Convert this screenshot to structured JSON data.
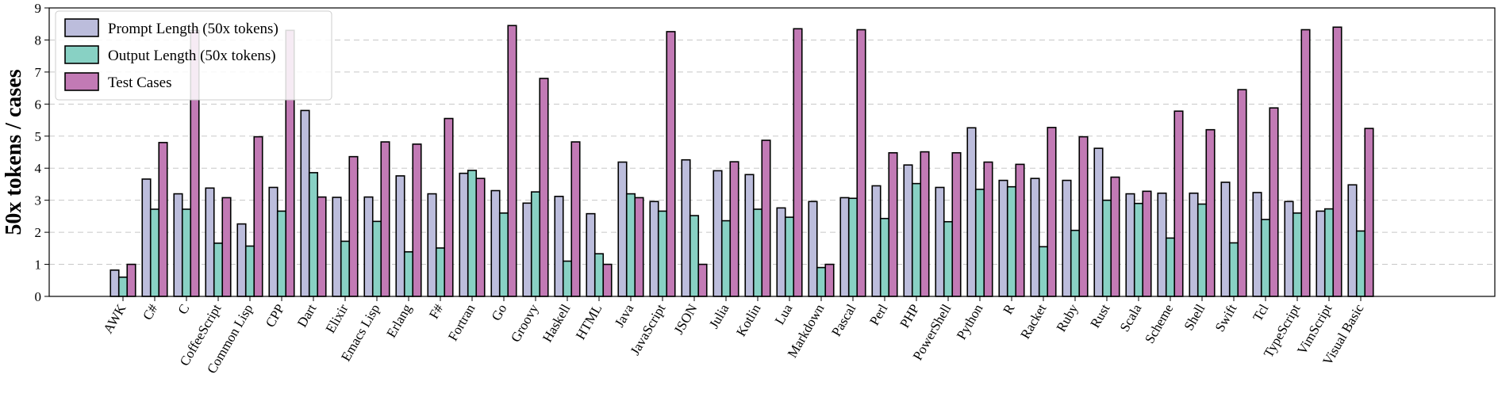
{
  "chart_data": {
    "type": "bar",
    "ylabel": "50x tokens / cases",
    "ylim": [
      0,
      9
    ],
    "yticks": [
      0,
      1,
      2,
      3,
      4,
      5,
      6,
      7,
      8,
      9
    ],
    "grid": "y-dashed",
    "legend_position": "top-left",
    "categories": [
      "AWK",
      "C#",
      "C",
      "CoffeeScript",
      "Common Lisp",
      "CPP",
      "Dart",
      "Elixir",
      "Emacs Lisp",
      "Erlang",
      "F#",
      "Fortran",
      "Go",
      "Groovy",
      "Haskell",
      "HTML",
      "Java",
      "JavaScript",
      "JSON",
      "Julia",
      "Kotlin",
      "Lua",
      "Markdown",
      "Pascal",
      "Perl",
      "PHP",
      "PowerShell",
      "Python",
      "R",
      "Racket",
      "Ruby",
      "Rust",
      "Scala",
      "Scheme",
      "Shell",
      "Swift",
      "Tcl",
      "TypeScript",
      "VimScript",
      "Visual Basic"
    ],
    "series": [
      {
        "name": "Prompt Length (50x tokens)",
        "color": "#bcbddc",
        "values": [
          0.82,
          3.66,
          3.2,
          3.38,
          2.26,
          3.4,
          5.8,
          3.09,
          3.1,
          3.76,
          3.2,
          3.84,
          3.3,
          2.91,
          3.12,
          2.58,
          4.19,
          2.96,
          4.26,
          3.92,
          3.8,
          2.76,
          2.96,
          3.08,
          3.45,
          4.1,
          3.4,
          5.26,
          3.62,
          3.68,
          3.62,
          4.62,
          3.2,
          3.22,
          3.22,
          3.56,
          3.24,
          2.96,
          2.66,
          3.48
        ]
      },
      {
        "name": "Output Length (50x tokens)",
        "color": "#88d1c4",
        "values": [
          0.6,
          2.72,
          2.72,
          1.66,
          1.57,
          2.66,
          3.86,
          1.72,
          2.34,
          1.39,
          1.51,
          3.93,
          2.6,
          3.26,
          1.1,
          1.33,
          3.2,
          2.66,
          2.52,
          2.36,
          2.72,
          2.47,
          0.9,
          3.06,
          2.43,
          3.52,
          2.33,
          3.34,
          3.42,
          1.55,
          2.06,
          3.0,
          2.9,
          1.82,
          2.88,
          1.67,
          2.4,
          2.6,
          2.73,
          2.04
        ]
      },
      {
        "name": "Test Cases",
        "color": "#c27ab5",
        "values": [
          1.0,
          4.8,
          8.3,
          3.08,
          4.98,
          8.3,
          3.1,
          4.36,
          4.82,
          4.75,
          5.55,
          3.68,
          8.45,
          6.8,
          4.82,
          1.0,
          3.08,
          8.26,
          1.0,
          4.2,
          4.87,
          8.35,
          1.0,
          8.32,
          4.48,
          4.51,
          4.48,
          4.19,
          4.12,
          5.27,
          4.98,
          3.72,
          3.28,
          5.78,
          5.2,
          6.45,
          5.88,
          8.32,
          8.4,
          5.24
        ]
      }
    ]
  }
}
